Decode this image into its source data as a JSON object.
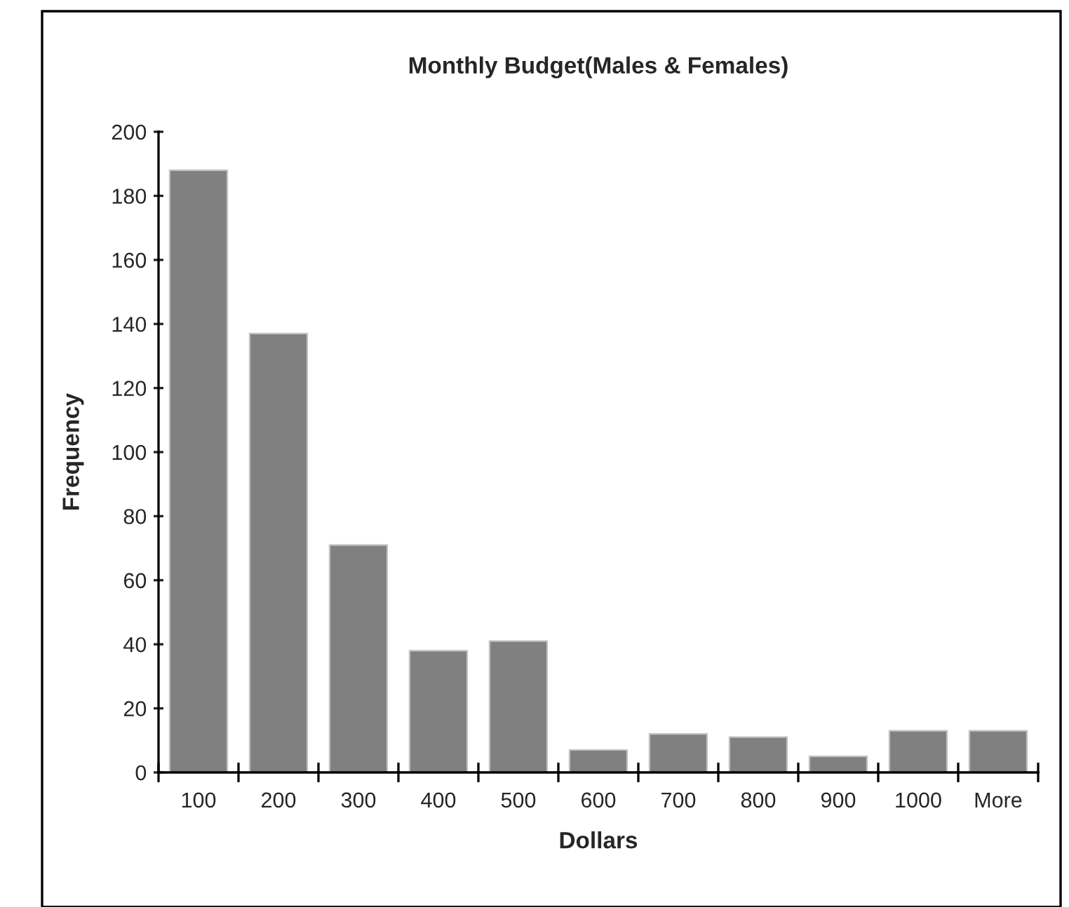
{
  "chart_data": {
    "type": "bar",
    "title": "Monthly Budget(Males & Females)",
    "xlabel": "Dollars",
    "ylabel": "Frequency",
    "categories": [
      "100",
      "200",
      "300",
      "400",
      "500",
      "600",
      "700",
      "800",
      "900",
      "1000",
      "More"
    ],
    "values": [
      188,
      137,
      71,
      38,
      41,
      7,
      12,
      11,
      5,
      13,
      13
    ],
    "color": "#808080",
    "ylim": [
      0,
      200
    ],
    "yticks": [
      0,
      20,
      40,
      60,
      80,
      100,
      120,
      140,
      160,
      180,
      200
    ],
    "grid": false
  }
}
